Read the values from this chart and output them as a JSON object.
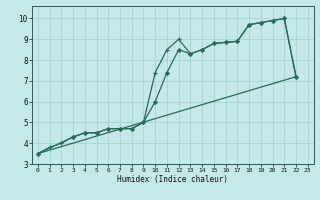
{
  "xlabel": "Humidex (Indice chaleur)",
  "bg_color": "#c5e8e8",
  "grid_color": "#a8d4d4",
  "line_color": "#2a6b5a",
  "xlim": [
    -0.5,
    23.5
  ],
  "ylim": [
    3.0,
    10.6
  ],
  "yticks": [
    3,
    4,
    5,
    6,
    7,
    8,
    9,
    10
  ],
  "xticks": [
    0,
    1,
    2,
    3,
    4,
    5,
    6,
    7,
    8,
    9,
    10,
    11,
    12,
    13,
    14,
    15,
    16,
    17,
    18,
    19,
    20,
    21,
    22,
    23
  ],
  "line1_x": [
    0,
    1,
    2,
    3,
    4,
    5,
    6,
    7,
    8,
    9,
    10,
    11,
    12,
    13,
    14,
    15,
    16,
    17,
    18,
    19,
    20,
    21,
    22
  ],
  "line1_y": [
    3.5,
    3.8,
    4.0,
    4.3,
    4.5,
    4.5,
    4.7,
    4.7,
    4.7,
    5.0,
    7.4,
    8.5,
    9.0,
    8.3,
    8.5,
    8.8,
    8.85,
    8.9,
    9.7,
    9.8,
    9.9,
    10.0,
    7.2
  ],
  "line2_x": [
    0,
    3,
    4,
    5,
    6,
    7,
    8,
    9,
    10,
    11,
    12,
    13,
    14,
    15,
    16,
    17,
    18,
    19,
    20,
    21,
    22
  ],
  "line2_y": [
    3.5,
    4.3,
    4.5,
    4.5,
    4.7,
    4.7,
    4.7,
    5.0,
    6.0,
    7.4,
    8.5,
    8.3,
    8.5,
    8.8,
    8.85,
    8.9,
    9.7,
    9.8,
    9.9,
    10.0,
    7.2
  ],
  "line3_x": [
    0,
    22
  ],
  "line3_y": [
    3.5,
    7.2
  ]
}
